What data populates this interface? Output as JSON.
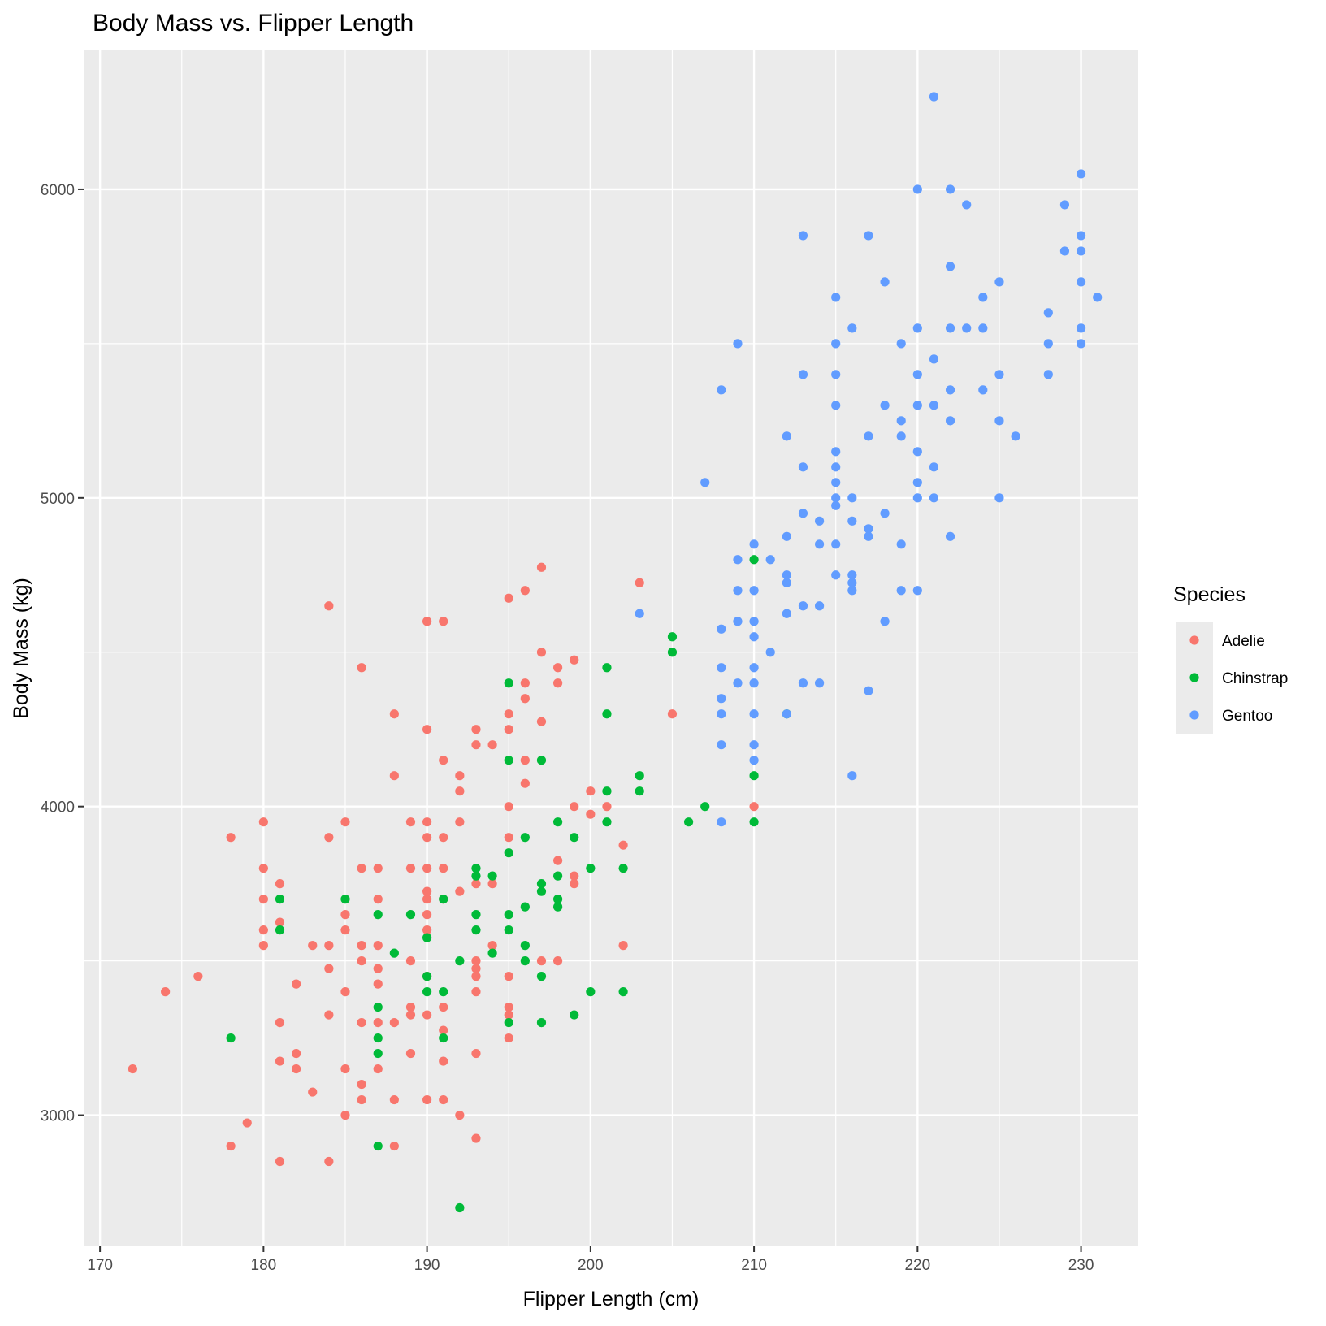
{
  "chart_data": {
    "type": "scatter",
    "title": "Body Mass vs. Flipper Length",
    "xlabel": "Flipper Length (cm)",
    "ylabel": "Body Mass (kg)",
    "xlim": [
      169,
      233.5
    ],
    "ylim": [
      2575,
      6450
    ],
    "x_ticks": [
      170,
      180,
      190,
      200,
      210,
      220,
      230
    ],
    "y_ticks": [
      3000,
      4000,
      5000,
      6000
    ],
    "x_tick_labels": [
      "170",
      "180",
      "190",
      "200",
      "210",
      "220",
      "230"
    ],
    "y_tick_labels": [
      "3000",
      "4000",
      "5000",
      "6000"
    ],
    "grid": true,
    "legend": {
      "title": "Species",
      "position": "right"
    },
    "series": [
      {
        "name": "Adelie",
        "color": "#F8766D",
        "points": [
          [
            172,
            3150
          ],
          [
            174,
            3400
          ],
          [
            176,
            3450
          ],
          [
            178,
            3900
          ],
          [
            178,
            2900
          ],
          [
            179,
            2975
          ],
          [
            180,
            3950
          ],
          [
            180,
            3800
          ],
          [
            180,
            3700
          ],
          [
            180,
            3600
          ],
          [
            180,
            3550
          ],
          [
            181,
            3750
          ],
          [
            181,
            3625
          ],
          [
            181,
            3300
          ],
          [
            181,
            3175
          ],
          [
            181,
            2850
          ],
          [
            182,
            3425
          ],
          [
            182,
            3200
          ],
          [
            182,
            3150
          ],
          [
            183,
            3550
          ],
          [
            183,
            3075
          ],
          [
            184,
            4650
          ],
          [
            184,
            3900
          ],
          [
            184,
            3550
          ],
          [
            184,
            3475
          ],
          [
            184,
            3325
          ],
          [
            184,
            2850
          ],
          [
            185,
            3950
          ],
          [
            185,
            3650
          ],
          [
            185,
            3600
          ],
          [
            185,
            3400
          ],
          [
            185,
            3150
          ],
          [
            185,
            3000
          ],
          [
            186,
            4450
          ],
          [
            186,
            3800
          ],
          [
            186,
            3550
          ],
          [
            186,
            3500
          ],
          [
            186,
            3300
          ],
          [
            186,
            3100
          ],
          [
            186,
            3050
          ],
          [
            187,
            3800
          ],
          [
            187,
            3700
          ],
          [
            187,
            3550
          ],
          [
            187,
            3475
          ],
          [
            187,
            3425
          ],
          [
            187,
            3300
          ],
          [
            187,
            3150
          ],
          [
            188,
            4300
          ],
          [
            188,
            4100
          ],
          [
            188,
            3300
          ],
          [
            188,
            3050
          ],
          [
            188,
            2900
          ],
          [
            189,
            3950
          ],
          [
            189,
            3800
          ],
          [
            189,
            3500
          ],
          [
            189,
            3350
          ],
          [
            189,
            3325
          ],
          [
            189,
            3200
          ],
          [
            190,
            4600
          ],
          [
            190,
            4250
          ],
          [
            190,
            3950
          ],
          [
            190,
            3900
          ],
          [
            190,
            3800
          ],
          [
            190,
            3725
          ],
          [
            190,
            3700
          ],
          [
            190,
            3650
          ],
          [
            190,
            3600
          ],
          [
            190,
            3450
          ],
          [
            190,
            3325
          ],
          [
            190,
            3050
          ],
          [
            191,
            4600
          ],
          [
            191,
            4150
          ],
          [
            191,
            3900
          ],
          [
            191,
            3800
          ],
          [
            191,
            3700
          ],
          [
            191,
            3350
          ],
          [
            191,
            3275
          ],
          [
            191,
            3175
          ],
          [
            191,
            3050
          ],
          [
            192,
            4100
          ],
          [
            192,
            4050
          ],
          [
            192,
            3950
          ],
          [
            192,
            3725
          ],
          [
            192,
            3000
          ],
          [
            193,
            4250
          ],
          [
            193,
            4200
          ],
          [
            193,
            3750
          ],
          [
            193,
            3500
          ],
          [
            193,
            3475
          ],
          [
            193,
            3450
          ],
          [
            193,
            3400
          ],
          [
            193,
            3200
          ],
          [
            193,
            2925
          ],
          [
            194,
            4200
          ],
          [
            194,
            3750
          ],
          [
            194,
            3550
          ],
          [
            195,
            4675
          ],
          [
            195,
            4300
          ],
          [
            195,
            4250
          ],
          [
            195,
            4000
          ],
          [
            195,
            3900
          ],
          [
            195,
            3450
          ],
          [
            195,
            3350
          ],
          [
            195,
            3325
          ],
          [
            195,
            3250
          ],
          [
            196,
            4700
          ],
          [
            196,
            4400
          ],
          [
            196,
            4350
          ],
          [
            196,
            4150
          ],
          [
            196,
            4075
          ],
          [
            197,
            4775
          ],
          [
            197,
            4500
          ],
          [
            197,
            4275
          ],
          [
            197,
            3500
          ],
          [
            198,
            4450
          ],
          [
            198,
            4400
          ],
          [
            198,
            3825
          ],
          [
            198,
            3500
          ],
          [
            199,
            4475
          ],
          [
            199,
            4000
          ],
          [
            199,
            3775
          ],
          [
            199,
            3750
          ],
          [
            200,
            4050
          ],
          [
            200,
            3975
          ],
          [
            201,
            4000
          ],
          [
            202,
            3875
          ],
          [
            202,
            3550
          ],
          [
            203,
            4725
          ],
          [
            205,
            4300
          ],
          [
            210,
            4000
          ]
        ]
      },
      {
        "name": "Chinstrap",
        "color": "#00BA38",
        "points": [
          [
            178,
            3250
          ],
          [
            181,
            3700
          ],
          [
            181,
            3600
          ],
          [
            185,
            3700
          ],
          [
            187,
            3650
          ],
          [
            187,
            3350
          ],
          [
            187,
            3250
          ],
          [
            187,
            3200
          ],
          [
            187,
            2900
          ],
          [
            188,
            3525
          ],
          [
            189,
            3650
          ],
          [
            190,
            3575
          ],
          [
            190,
            3450
          ],
          [
            190,
            3400
          ],
          [
            191,
            3700
          ],
          [
            191,
            3400
          ],
          [
            191,
            3250
          ],
          [
            192,
            3500
          ],
          [
            192,
            2700
          ],
          [
            193,
            3800
          ],
          [
            193,
            3775
          ],
          [
            193,
            3650
          ],
          [
            193,
            3600
          ],
          [
            194,
            3775
          ],
          [
            194,
            3525
          ],
          [
            195,
            4400
          ],
          [
            195,
            4150
          ],
          [
            195,
            3850
          ],
          [
            195,
            3650
          ],
          [
            195,
            3600
          ],
          [
            195,
            3300
          ],
          [
            196,
            3900
          ],
          [
            196,
            3675
          ],
          [
            196,
            3550
          ],
          [
            196,
            3500
          ],
          [
            197,
            4150
          ],
          [
            197,
            3750
          ],
          [
            197,
            3725
          ],
          [
            197,
            3450
          ],
          [
            197,
            3300
          ],
          [
            198,
            3950
          ],
          [
            198,
            3775
          ],
          [
            198,
            3700
          ],
          [
            198,
            3675
          ],
          [
            199,
            3900
          ],
          [
            199,
            3325
          ],
          [
            200,
            3800
          ],
          [
            200,
            3400
          ],
          [
            201,
            4450
          ],
          [
            201,
            4300
          ],
          [
            201,
            4050
          ],
          [
            201,
            3950
          ],
          [
            202,
            3800
          ],
          [
            202,
            3400
          ],
          [
            203,
            4100
          ],
          [
            203,
            4050
          ],
          [
            205,
            4550
          ],
          [
            205,
            4500
          ],
          [
            206,
            3950
          ],
          [
            207,
            4000
          ],
          [
            210,
            4800
          ],
          [
            210,
            4100
          ],
          [
            210,
            3950
          ],
          [
            212,
            4300
          ]
        ]
      },
      {
        "name": "Gentoo",
        "color": "#619CFF",
        "points": [
          [
            203,
            4625
          ],
          [
            207,
            5050
          ],
          [
            208,
            5350
          ],
          [
            208,
            4575
          ],
          [
            208,
            4450
          ],
          [
            208,
            4350
          ],
          [
            208,
            4300
          ],
          [
            208,
            4200
          ],
          [
            208,
            3950
          ],
          [
            209,
            5500
          ],
          [
            209,
            4800
          ],
          [
            209,
            4700
          ],
          [
            209,
            4600
          ],
          [
            209,
            4400
          ],
          [
            210,
            4850
          ],
          [
            210,
            4700
          ],
          [
            210,
            4600
          ],
          [
            210,
            4550
          ],
          [
            210,
            4450
          ],
          [
            210,
            4400
          ],
          [
            210,
            4300
          ],
          [
            210,
            4200
          ],
          [
            210,
            4150
          ],
          [
            211,
            4800
          ],
          [
            211,
            4500
          ],
          [
            212,
            5200
          ],
          [
            212,
            4875
          ],
          [
            212,
            4750
          ],
          [
            212,
            4725
          ],
          [
            212,
            4625
          ],
          [
            212,
            4300
          ],
          [
            213,
            5850
          ],
          [
            213,
            5400
          ],
          [
            213,
            5100
          ],
          [
            213,
            4950
          ],
          [
            213,
            4650
          ],
          [
            213,
            4400
          ],
          [
            214,
            4925
          ],
          [
            214,
            4850
          ],
          [
            214,
            4650
          ],
          [
            214,
            4400
          ],
          [
            215,
            5650
          ],
          [
            215,
            5500
          ],
          [
            215,
            5400
          ],
          [
            215,
            5300
          ],
          [
            215,
            5150
          ],
          [
            215,
            5100
          ],
          [
            215,
            5050
          ],
          [
            215,
            5000
          ],
          [
            215,
            4975
          ],
          [
            215,
            4850
          ],
          [
            215,
            4750
          ],
          [
            216,
            5550
          ],
          [
            216,
            5000
          ],
          [
            216,
            4925
          ],
          [
            216,
            4750
          ],
          [
            216,
            4725
          ],
          [
            216,
            4700
          ],
          [
            216,
            4100
          ],
          [
            217,
            5850
          ],
          [
            217,
            5200
          ],
          [
            217,
            4900
          ],
          [
            217,
            4875
          ],
          [
            217,
            4375
          ],
          [
            218,
            5700
          ],
          [
            218,
            5300
          ],
          [
            218,
            4950
          ],
          [
            218,
            4600
          ],
          [
            219,
            5500
          ],
          [
            219,
            5250
          ],
          [
            219,
            5200
          ],
          [
            219,
            4850
          ],
          [
            219,
            4700
          ],
          [
            220,
            6000
          ],
          [
            220,
            5550
          ],
          [
            220,
            5400
          ],
          [
            220,
            5300
          ],
          [
            220,
            5150
          ],
          [
            220,
            5050
          ],
          [
            220,
            5000
          ],
          [
            220,
            4700
          ],
          [
            221,
            6300
          ],
          [
            221,
            5450
          ],
          [
            221,
            5300
          ],
          [
            221,
            5100
          ],
          [
            221,
            5000
          ],
          [
            222,
            6000
          ],
          [
            222,
            5750
          ],
          [
            222,
            5550
          ],
          [
            222,
            5350
          ],
          [
            222,
            5250
          ],
          [
            222,
            4875
          ],
          [
            223,
            5950
          ],
          [
            223,
            5550
          ],
          [
            224,
            5650
          ],
          [
            224,
            5550
          ],
          [
            224,
            5350
          ],
          [
            225,
            5700
          ],
          [
            225,
            5400
          ],
          [
            225,
            5250
          ],
          [
            225,
            5000
          ],
          [
            226,
            5200
          ],
          [
            228,
            5600
          ],
          [
            228,
            5500
          ],
          [
            228,
            5400
          ],
          [
            229,
            5950
          ],
          [
            229,
            5800
          ],
          [
            230,
            6050
          ],
          [
            230,
            5850
          ],
          [
            230,
            5800
          ],
          [
            230,
            5700
          ],
          [
            230,
            5550
          ],
          [
            230,
            5500
          ],
          [
            231,
            5650
          ]
        ]
      }
    ]
  }
}
